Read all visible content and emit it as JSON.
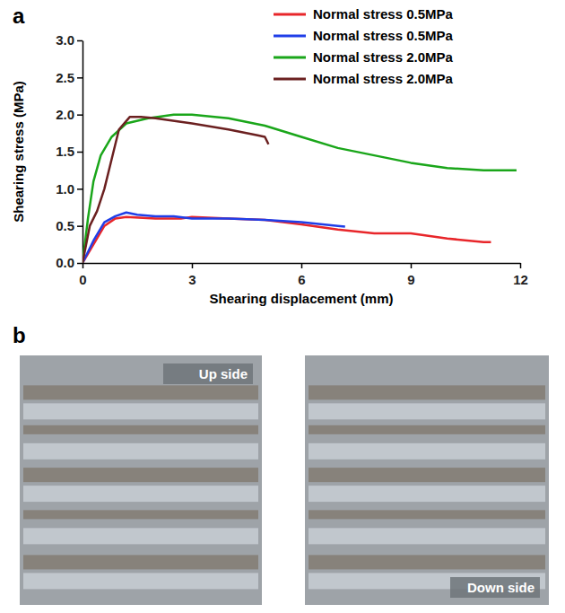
{
  "chart_data": {
    "type": "line",
    "x_label": "Shearing displacement (mm)",
    "y_label": "Shearing stress (MPa)",
    "xlim": [
      0,
      12
    ],
    "xticks": [
      0,
      3,
      6,
      9,
      12
    ],
    "ylim": [
      0,
      3.0
    ],
    "yticks": [
      {
        "value": 0,
        "label": "0.0"
      },
      {
        "value": 0.5,
        "label": "0.5"
      },
      {
        "value": 1.0,
        "label": "1.0"
      },
      {
        "value": 1.5,
        "label": "1.5"
      },
      {
        "value": 2.0,
        "label": "2.0"
      },
      {
        "value": 2.5,
        "label": "2.5"
      },
      {
        "value": 3.0,
        "label": "3.0"
      }
    ],
    "grid": false,
    "legend": "top-right",
    "series": [
      {
        "name": "Normal stress 0.5MPa",
        "color": "#e8262a",
        "x": [
          0,
          0.3,
          0.6,
          0.9,
          1.2,
          2,
          2.7,
          3,
          4,
          5,
          6,
          7,
          8,
          9,
          10,
          11,
          11.2
        ],
        "values": [
          0,
          0.25,
          0.5,
          0.6,
          0.62,
          0.6,
          0.6,
          0.62,
          0.6,
          0.58,
          0.52,
          0.45,
          0.4,
          0.4,
          0.33,
          0.28,
          0.28
        ]
      },
      {
        "name": "Normal stress 0.5MPa",
        "color": "#1f3ee8",
        "x": [
          0,
          0.3,
          0.6,
          0.9,
          1.2,
          1.5,
          2,
          2.5,
          3,
          4,
          5,
          6,
          7,
          7.2
        ],
        "values": [
          0,
          0.3,
          0.55,
          0.63,
          0.68,
          0.65,
          0.63,
          0.63,
          0.6,
          0.6,
          0.58,
          0.55,
          0.5,
          0.49
        ]
      },
      {
        "name": "Normal stress 2.0MPa",
        "color": "#1aa61a",
        "x": [
          0,
          0.15,
          0.3,
          0.5,
          0.8,
          1.2,
          1.8,
          2.5,
          3,
          4,
          5,
          6,
          7,
          8,
          9,
          10,
          11,
          11.9
        ],
        "values": [
          0,
          0.6,
          1.1,
          1.45,
          1.7,
          1.88,
          1.95,
          2.0,
          2.0,
          1.95,
          1.85,
          1.7,
          1.55,
          1.45,
          1.35,
          1.28,
          1.25,
          1.25
        ]
      },
      {
        "name": "Normal stress 2.0MPa",
        "color": "#6b2020",
        "x": [
          0,
          0.2,
          0.4,
          0.6,
          0.8,
          1.0,
          1.3,
          1.6,
          2,
          3,
          4,
          4.8,
          5.0,
          5.1
        ],
        "values": [
          0,
          0.5,
          0.7,
          1.0,
          1.4,
          1.8,
          1.97,
          1.97,
          1.95,
          1.88,
          1.8,
          1.72,
          1.7,
          1.6
        ]
      }
    ]
  },
  "figure": {
    "panel_labels": [
      "a",
      "b"
    ],
    "photos": [
      {
        "label": "Up side"
      },
      {
        "label": "Down side"
      }
    ]
  }
}
